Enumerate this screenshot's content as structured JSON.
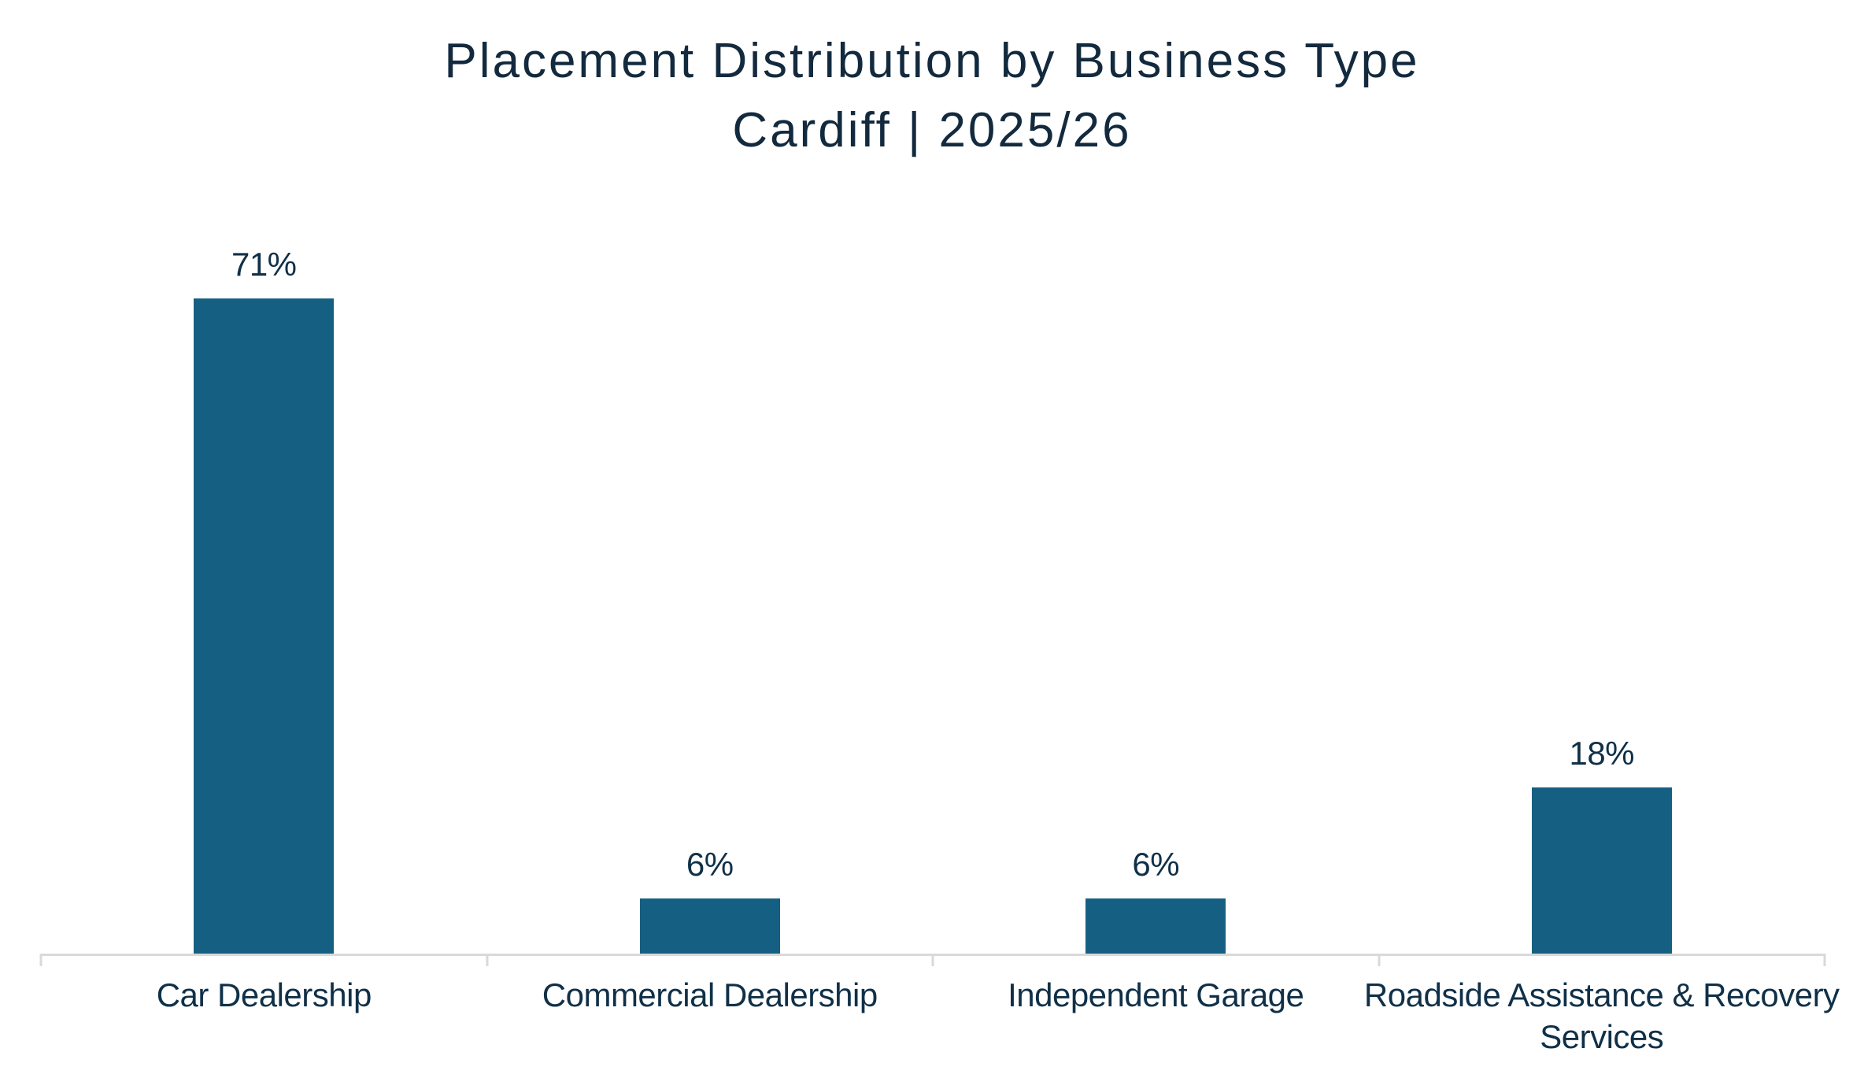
{
  "title": {
    "line1": "Placement Distribution by Business Type",
    "line2": "Cardiff | 2025/26"
  },
  "chart_data": {
    "type": "bar",
    "title": "Placement Distribution by Business Type",
    "subtitle": "Cardiff | 2025/26",
    "categories": [
      "Car Dealership",
      "Commercial Dealership",
      "Independent Garage",
      "Roadside Assistance & Recovery Services"
    ],
    "values": [
      71,
      6,
      6,
      18
    ],
    "data_labels": [
      "71%",
      "6%",
      "6%",
      "18%"
    ],
    "unit": "%",
    "xlabel": "",
    "ylabel": "",
    "ylim": [
      0,
      100
    ],
    "grid": false,
    "legend": false,
    "y_axis_visible": false,
    "colors": {
      "bar_fill": "#156082",
      "axis_line": "#D9D9D9",
      "title_text": "#132A3E",
      "label_text": "#103048",
      "background": "#FFFFFF"
    }
  }
}
